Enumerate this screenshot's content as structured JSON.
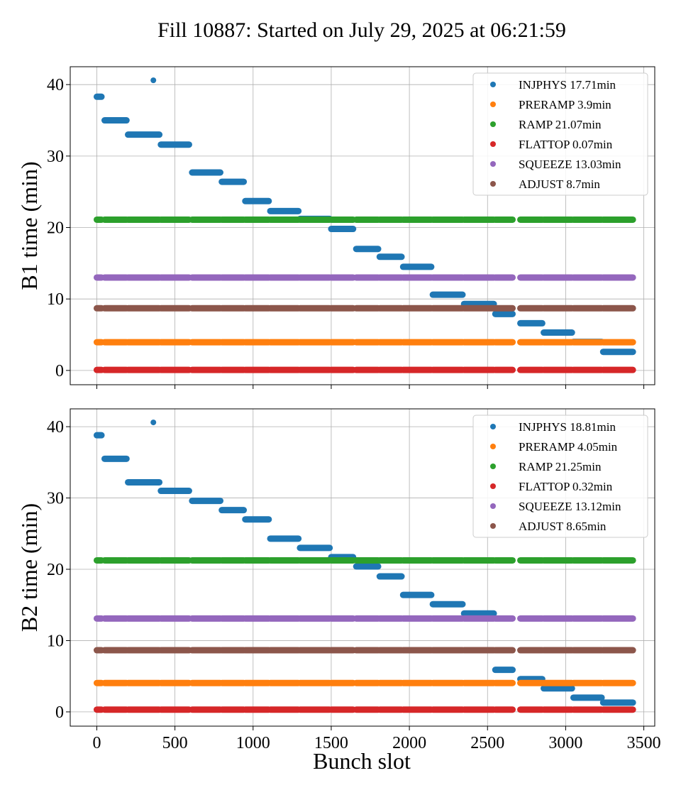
{
  "chart_data": {
    "type": "scatter",
    "title": "Fill 10887: Started on July 29, 2025 at 06:21:59",
    "xlabel": "Bunch slot",
    "xlim": [
      -170,
      3570
    ],
    "xticks": [
      0,
      500,
      1000,
      1500,
      2000,
      2500,
      3000,
      3500
    ],
    "grid": true,
    "colors": {
      "INJPHYS": "#1f77b4",
      "PRERAMP": "#ff7f0e",
      "RAMP": "#2ca02c",
      "FLATTOP": "#d62728",
      "SQUEEZE": "#9467bd",
      "ADJUST": "#8c564b"
    },
    "bunch_groups": [
      [
        0,
        30
      ],
      [
        50,
        190
      ],
      [
        200,
        400
      ],
      [
        410,
        590
      ],
      [
        610,
        790
      ],
      [
        800,
        940
      ],
      [
        950,
        1100
      ],
      [
        1110,
        1290
      ],
      [
        1300,
        1490
      ],
      [
        1500,
        1640
      ],
      [
        1660,
        1800
      ],
      [
        1810,
        1950
      ],
      [
        1960,
        2140
      ],
      [
        2150,
        2340
      ],
      [
        2350,
        2540
      ],
      [
        2550,
        2660
      ],
      [
        2710,
        2850
      ],
      [
        2860,
        3040
      ],
      [
        3050,
        3230
      ],
      [
        3240,
        3430
      ]
    ],
    "panels": [
      {
        "ylabel": "B1 time (min)",
        "ylim": [
          -2,
          42.5
        ],
        "yticks": [
          0,
          10,
          20,
          30,
          40
        ],
        "show_xticklabels": false,
        "legend_position": "upper-right",
        "series": [
          {
            "name": "INJPHYS 17.71min",
            "phase": "INJPHYS",
            "values": [
              38.3,
              35.0,
              33.0,
              31.6,
              27.7,
              26.4,
              23.7,
              22.3,
              21.2,
              19.8,
              17.0,
              15.9,
              14.5,
              10.6,
              9.3,
              7.9,
              6.6,
              5.3,
              4.0,
              2.6
            ],
            "extra_points": [
              {
                "x": 362,
                "y": 40.6
              }
            ]
          },
          {
            "name": "PRERAMP 3.9min",
            "phase": "PRERAMP",
            "values": [
              3.95
            ]
          },
          {
            "name": "RAMP 21.07min",
            "phase": "RAMP",
            "values": [
              21.1
            ]
          },
          {
            "name": "FLATTOP 0.07min",
            "phase": "FLATTOP",
            "values": [
              0.07
            ]
          },
          {
            "name": "SQUEEZE 13.03min",
            "phase": "SQUEEZE",
            "values": [
              13.0
            ]
          },
          {
            "name": "ADJUST 8.7min",
            "phase": "ADJUST",
            "values": [
              8.7
            ]
          }
        ]
      },
      {
        "ylabel": "B2 time (min)",
        "ylim": [
          -2,
          42.5
        ],
        "yticks": [
          0,
          10,
          20,
          30,
          40
        ],
        "show_xticklabels": true,
        "legend_position": "upper-right",
        "series": [
          {
            "name": "INJPHYS 18.81min",
            "phase": "INJPHYS",
            "values": [
              38.8,
              35.5,
              32.2,
              31.0,
              29.6,
              28.3,
              27.0,
              24.3,
              23.0,
              21.7,
              20.4,
              19.0,
              16.4,
              15.1,
              13.8,
              5.9,
              4.6,
              3.3,
              2.0,
              1.3
            ],
            "extra_points": [
              {
                "x": 362,
                "y": 40.6
              }
            ]
          },
          {
            "name": "PRERAMP 4.05min",
            "phase": "PRERAMP",
            "values": [
              4.05
            ]
          },
          {
            "name": "RAMP 21.25min",
            "phase": "RAMP",
            "values": [
              21.25
            ]
          },
          {
            "name": "FLATTOP 0.32min",
            "phase": "FLATTOP",
            "values": [
              0.32
            ]
          },
          {
            "name": "SQUEEZE 13.12min",
            "phase": "SQUEEZE",
            "values": [
              13.1
            ]
          },
          {
            "name": "ADJUST 8.65min",
            "phase": "ADJUST",
            "values": [
              8.65
            ]
          }
        ]
      }
    ]
  }
}
